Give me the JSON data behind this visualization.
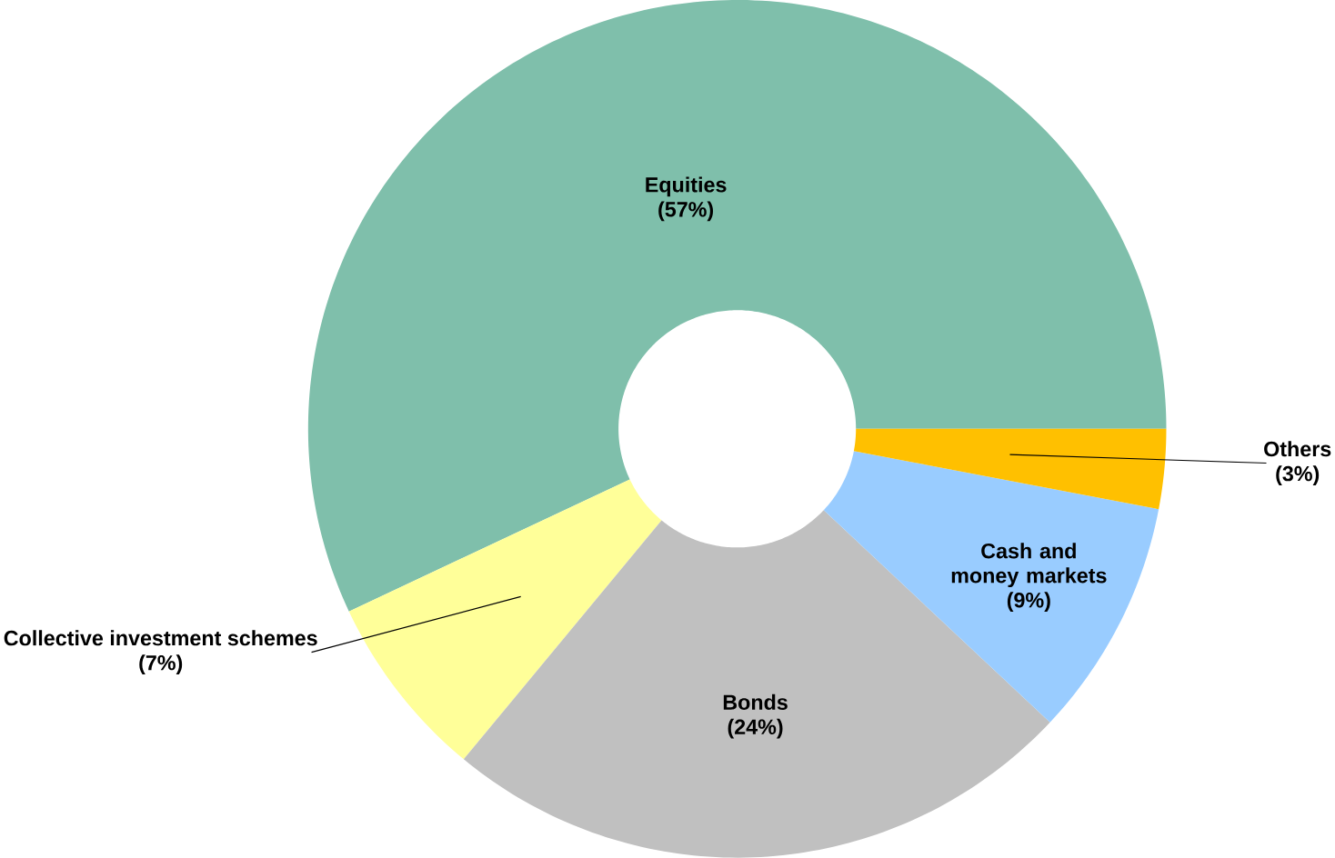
{
  "chart_data": {
    "type": "donut",
    "categories": [
      "Equities",
      "Collective investment schemes",
      "Bonds",
      "Cash and money markets",
      "Others"
    ],
    "values": [
      57,
      7,
      24,
      9,
      3
    ],
    "colors": [
      "#7fbfab",
      "#ffff99",
      "#c0c0c0",
      "#99ccff",
      "#ffc000"
    ],
    "value_labels": [
      "(57%)",
      "(7%)",
      "(24%)",
      "(9%)",
      "(3%)"
    ]
  }
}
